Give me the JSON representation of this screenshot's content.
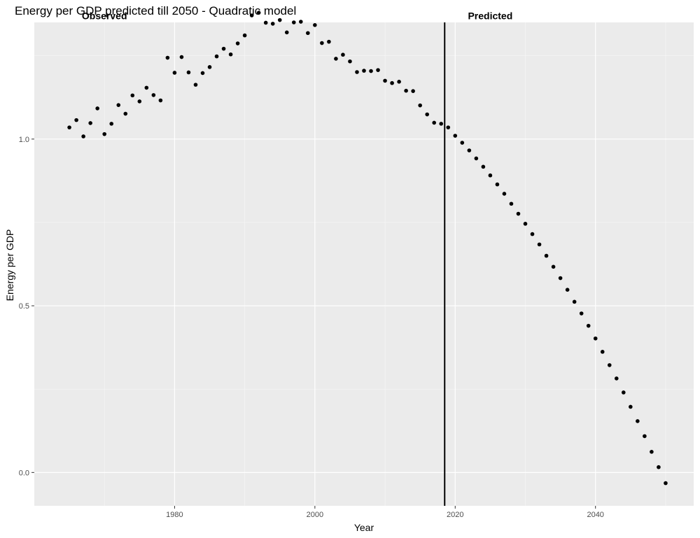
{
  "chart_data": {
    "type": "scatter",
    "title": "Energy per GDP predicted till 2050 - Quadratic model",
    "xlabel": "Year",
    "ylabel": "Energy per GDP",
    "xlim": [
      1960,
      2054
    ],
    "ylim": [
      -0.1,
      1.35
    ],
    "x_ticks": [
      1980,
      2000,
      2020,
      2040
    ],
    "y_ticks": [
      0.0,
      0.5,
      1.0
    ],
    "x_tick_labels": [
      "1980",
      "2000",
      "2020",
      "2040"
    ],
    "y_tick_labels": [
      "0.0",
      "0.5",
      "1.0"
    ],
    "vline_x": 2018.5,
    "grid": true,
    "background": "#ebebeb",
    "point_color": "#000000",
    "annotations": [
      {
        "text": "Observed",
        "x": 1970,
        "y": 1.37
      },
      {
        "text": "Predicted",
        "x": 2025,
        "y": 1.37
      }
    ],
    "x": [
      1965,
      1966,
      1967,
      1968,
      1969,
      1970,
      1971,
      1972,
      1973,
      1974,
      1975,
      1976,
      1977,
      1978,
      1979,
      1980,
      1981,
      1982,
      1983,
      1984,
      1985,
      1986,
      1987,
      1988,
      1989,
      1990,
      1991,
      1992,
      1993,
      1994,
      1995,
      1996,
      1997,
      1998,
      1999,
      2000,
      2001,
      2002,
      2003,
      2004,
      2005,
      2006,
      2007,
      2008,
      2009,
      2010,
      2011,
      2012,
      2013,
      2014,
      2015,
      2016,
      2017,
      2018,
      2019,
      2020,
      2021,
      2022,
      2023,
      2024,
      2025,
      2026,
      2027,
      2028,
      2029,
      2030,
      2031,
      2032,
      2033,
      2034,
      2035,
      2036,
      2037,
      2038,
      2039,
      2040,
      2041,
      2042,
      2043,
      2044,
      2045,
      2046,
      2047,
      2048,
      2049,
      2050
    ],
    "y": [
      1.035,
      1.057,
      1.008,
      1.048,
      1.092,
      1.015,
      1.046,
      1.102,
      1.076,
      1.131,
      1.113,
      1.154,
      1.132,
      1.116,
      1.244,
      1.199,
      1.246,
      1.2,
      1.163,
      1.198,
      1.216,
      1.248,
      1.271,
      1.254,
      1.287,
      1.311,
      1.371,
      1.379,
      1.349,
      1.346,
      1.357,
      1.32,
      1.35,
      1.352,
      1.318,
      1.342,
      1.288,
      1.292,
      1.241,
      1.253,
      1.233,
      1.201,
      1.205,
      1.204,
      1.207,
      1.175,
      1.168,
      1.172,
      1.145,
      1.144,
      1.101,
      1.074,
      1.049,
      1.046,
      1.035,
      1.01,
      0.989,
      0.966,
      0.942,
      0.917,
      0.891,
      0.864,
      0.836,
      0.806,
      0.776,
      0.746,
      0.715,
      0.684,
      0.65,
      0.617,
      0.583,
      0.548,
      0.512,
      0.477,
      0.44,
      0.402,
      0.362,
      0.322,
      0.282,
      0.24,
      0.197,
      0.154,
      0.109,
      0.062,
      0.016,
      -0.032
    ]
  }
}
